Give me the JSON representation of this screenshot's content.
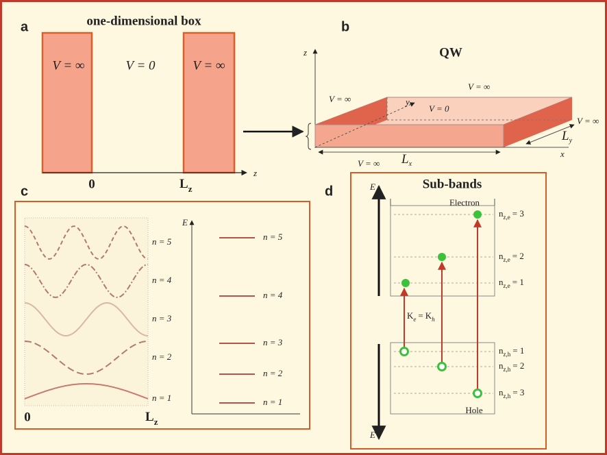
{
  "panel_a": {
    "letter": "a",
    "title": "one-dimensional box",
    "left_label": "V = ∞",
    "middle_label": "V = 0",
    "right_label": "V = ∞",
    "origin": "0",
    "length": {
      "main": "L",
      "sub": "z"
    },
    "axis": "z"
  },
  "panel_b": {
    "letter": "b",
    "title": "QW",
    "z_axis": "z",
    "y_axis": "y",
    "x_axis": "x",
    "left_label": "V = ∞",
    "top_label": "V = ∞",
    "inside_label": "V = 0",
    "right_label": "V = ∞",
    "bottom_label": "V = ∞",
    "length_x": {
      "main": "L",
      "sub": "x"
    },
    "length_y": {
      "main": "L",
      "sub": "y"
    }
  },
  "panel_c": {
    "letter": "c",
    "wave_labels": [
      "n = 5",
      "n = 4",
      "n = 3",
      "n = 2",
      "n = 1"
    ],
    "origin": "0",
    "length": {
      "main": "L",
      "sub": "z"
    },
    "energy_axis": "E",
    "level_labels": [
      "n = 5",
      "n = 4",
      "n = 3",
      "n = 2",
      "n = 1"
    ]
  },
  "panel_d": {
    "letter": "d",
    "title": "Sub-bands",
    "energy_axis_top": "E",
    "energy_axis_bottom": "E",
    "electron": "Electron",
    "hole": "Hole",
    "electron_levels": [
      {
        "main": "n",
        "sub": "z,e",
        "rest": "= 3"
      },
      {
        "main": "n",
        "sub": "z,e",
        "rest": "= 2"
      },
      {
        "main": "n",
        "sub": "z,e",
        "rest": "= 1"
      }
    ],
    "hole_levels": [
      {
        "main": "n",
        "sub": "z,h",
        "rest": "= 1"
      },
      {
        "main": "n",
        "sub": "z,h",
        "rest": "= 2"
      },
      {
        "main": "n",
        "sub": "z,h",
        "rest": "= 3"
      }
    ],
    "momentum": {
      "left": "K",
      "left_sub": "e",
      "equals": "=",
      "right": "K",
      "right_sub": "h"
    }
  }
}
